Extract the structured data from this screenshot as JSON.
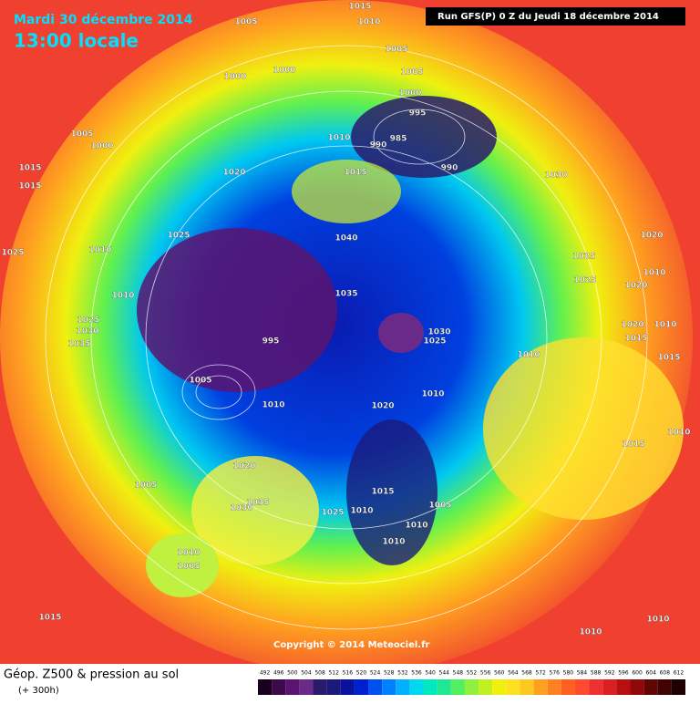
{
  "header": {
    "date": "Mardi 30 décembre 2014",
    "time": "13:00 locale",
    "run": "Run GFS(P) 0 Z du Jeudi 18 décembre 2014"
  },
  "copyright": "Copyright © 2014 Meteociel.fr",
  "legend": {
    "title": "Géop. Z500 & pression au sol",
    "subtitle": "(+ 300h)",
    "ticks": [
      492,
      496,
      500,
      504,
      508,
      512,
      516,
      520,
      524,
      528,
      532,
      536,
      540,
      544,
      548,
      552,
      556,
      560,
      564,
      568,
      572,
      576,
      580,
      584,
      588,
      592,
      596,
      600,
      604,
      608,
      612
    ],
    "colors": [
      "#1a0020",
      "#3c0a4a",
      "#5a1470",
      "#6a2a8a",
      "#2a1a6a",
      "#1a1a7a",
      "#0a10a0",
      "#0020d0",
      "#0050f0",
      "#0080ff",
      "#00b0ff",
      "#00d8f0",
      "#00e8c0",
      "#20e890",
      "#50f060",
      "#90f040",
      "#c0f020",
      "#f0f010",
      "#ffe020",
      "#ffc820",
      "#ffa020",
      "#ff8020",
      "#ff6020",
      "#ff4a30",
      "#f03030",
      "#d82020",
      "#b81010",
      "#900808",
      "#600404",
      "#400202",
      "#200000"
    ]
  },
  "isobars": [
    "1015",
    "1010",
    "1005",
    "1005",
    "1005",
    "1000",
    "1000",
    "1000",
    "995",
    "990",
    "985",
    "990",
    "1005",
    "1000",
    "1015",
    "1015",
    "1020",
    "1010",
    "1015",
    "1030",
    "1025",
    "1010",
    "1025",
    "1040",
    "1020",
    "1025",
    "1010",
    "1025",
    "1020",
    "1010",
    "1035",
    "1025",
    "1030",
    "1035",
    "1030",
    "1025",
    "995",
    "1020",
    "1010",
    "1015",
    "1015",
    "1010",
    "1005",
    "1010",
    "1020",
    "1010",
    "1015",
    "1010",
    "1020",
    "1005",
    "1035",
    "1030",
    "1015",
    "1005",
    "1025",
    "1010",
    "1010",
    "1010",
    "1010",
    "1005",
    "1015",
    "1010",
    "1010"
  ]
}
